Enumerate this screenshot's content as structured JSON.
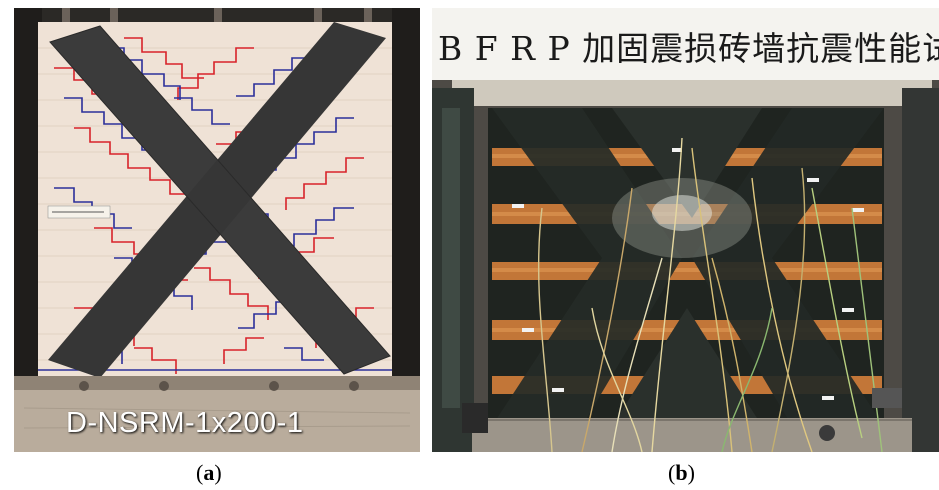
{
  "panels": {
    "a": {
      "caption": "D-NSRM-1x200-1",
      "sublabel_open": "(",
      "sublabel_letter": "a",
      "sublabel_close": ")"
    },
    "b": {
      "banner": "B F R P 加固震损砖墙抗震性能试验",
      "sublabel_open": "(",
      "sublabel_letter": "b",
      "sublabel_close": ")"
    }
  },
  "colors": {
    "crack_red": "#d8232a",
    "crack_blue": "#2b2f9a",
    "cfrp_strip": "#3a3a3a",
    "wall_plaster": "#eee0d3",
    "brick": "#c7773a"
  }
}
